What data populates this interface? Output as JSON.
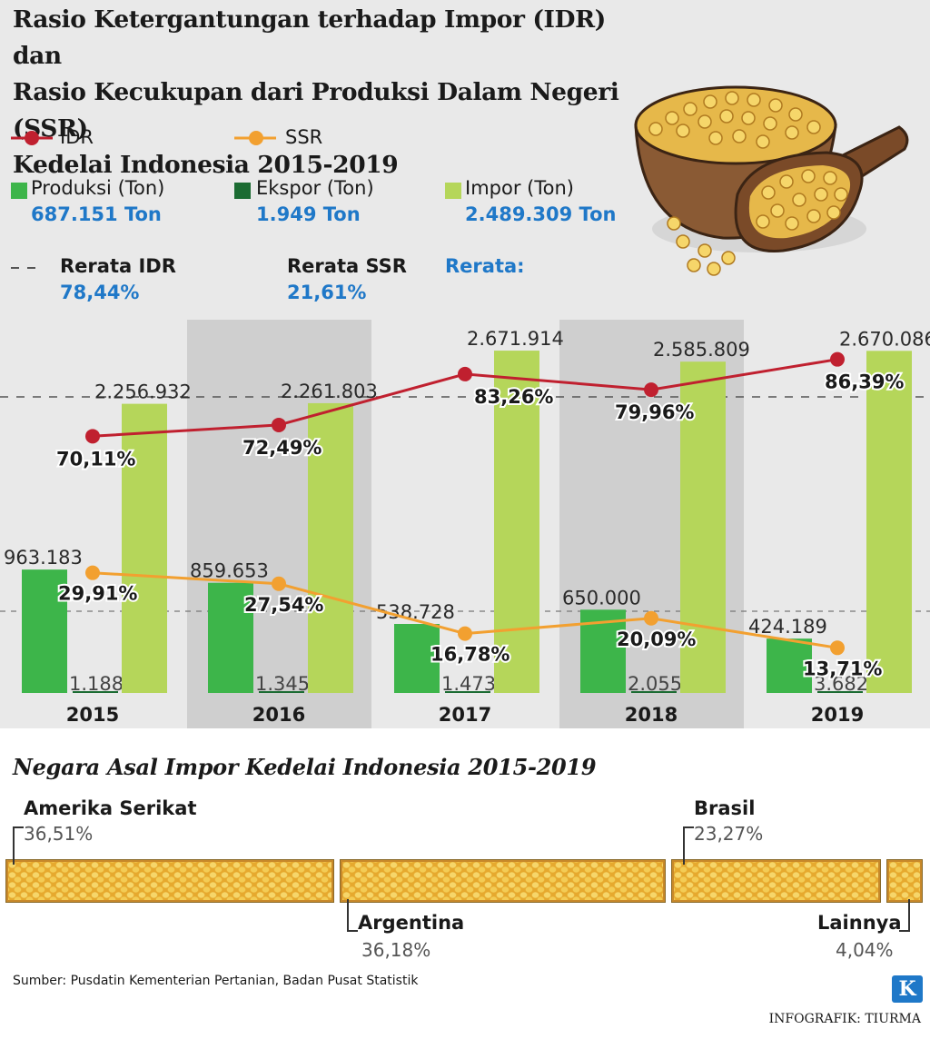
{
  "title_lines": [
    "Rasio Ketergantungan terhadap Impor (IDR) dan",
    "Rasio Kecukupan dari Produksi Dalam Negeri (SSR)",
    "Kedelai Indonesia 2015-2019"
  ],
  "legend": {
    "idr_label": "IDR",
    "ssr_label": "SSR",
    "produksi_label": "Produksi (Ton)",
    "produksi_value": "687.151 Ton",
    "ekspor_label": "Ekspor (Ton)",
    "ekspor_value": "1.949 Ton",
    "impor_label": "Impor (Ton)",
    "impor_value": "2.489.309 Ton",
    "rerata_idr_label": "Rerata IDR",
    "rerata_idr_value": "78,44%",
    "rerata_ssr_label": "Rerata SSR",
    "rerata_ssr_value": "21,61%",
    "rerata_label": "Rerata:"
  },
  "colors": {
    "produksi": "#3db54a",
    "ekspor": "#1b6b32",
    "impor": "#b5d65a",
    "idr": "#c0202f",
    "ssr": "#f2a030",
    "band": "#cfcfcf",
    "background": "#e9e9e9"
  },
  "chart_data": {
    "type": "bar",
    "title": "Rasio Ketergantungan terhadap Impor (IDR) dan Rasio Kecukupan dari Produksi Dalam Negeri (SSR) Kedelai Indonesia 2015-2019",
    "categories": [
      "2015",
      "2016",
      "2017",
      "2018",
      "2019"
    ],
    "series": [
      {
        "name": "Produksi (Ton)",
        "values": [
          963183,
          859653,
          538728,
          650000,
          424189
        ],
        "labels": [
          "963.183",
          "859.653",
          "538.728",
          "650.000",
          "424.189"
        ]
      },
      {
        "name": "Ekspor (Ton)",
        "values": [
          1188,
          1345,
          1473,
          2055,
          3682
        ],
        "labels": [
          "1.188",
          "1.345",
          "1.473",
          "2.055",
          "3.682"
        ]
      },
      {
        "name": "Impor (Ton)",
        "values": [
          2256932,
          2261803,
          2671914,
          2585809,
          2670086
        ],
        "labels": [
          "2.256.932",
          "2.261.803",
          "2.671.914",
          "2.585.809",
          "2.670.086"
        ]
      }
    ],
    "lines": [
      {
        "name": "IDR",
        "values": [
          70.11,
          72.49,
          83.26,
          79.96,
          86.39
        ],
        "labels": [
          "70,11%",
          "72,49%",
          "83,26%",
          "79,96%",
          "86,39%"
        ],
        "average": 78.44
      },
      {
        "name": "SSR",
        "values": [
          29.91,
          27.54,
          16.78,
          20.09,
          13.71
        ],
        "labels": [
          "29,91%",
          "27,54%",
          "16,78%",
          "20,09%",
          "13,71%"
        ],
        "average": 21.61
      }
    ],
    "ylim": [
      0,
      2800000
    ],
    "xlabel": "",
    "ylabel": ""
  },
  "import_origin": {
    "title": "Negara Asal Impor Kedelai Indonesia 2015-2019",
    "countries": [
      {
        "name": "Amerika Serikat",
        "pct": "36,51%",
        "share": 36.51
      },
      {
        "name": "Argentina",
        "pct": "36,18%",
        "share": 36.18
      },
      {
        "name": "Brasil",
        "pct": "23,27%",
        "share": 23.27
      },
      {
        "name": "Lainnya",
        "pct": "4,04%",
        "share": 4.04
      }
    ]
  },
  "source": "Sumber: Pusdatin Kementerian Pertanian, Badan Pusat Statistik",
  "credit": "INFOGRAFIK: TIURMA",
  "logo_letter": "K"
}
